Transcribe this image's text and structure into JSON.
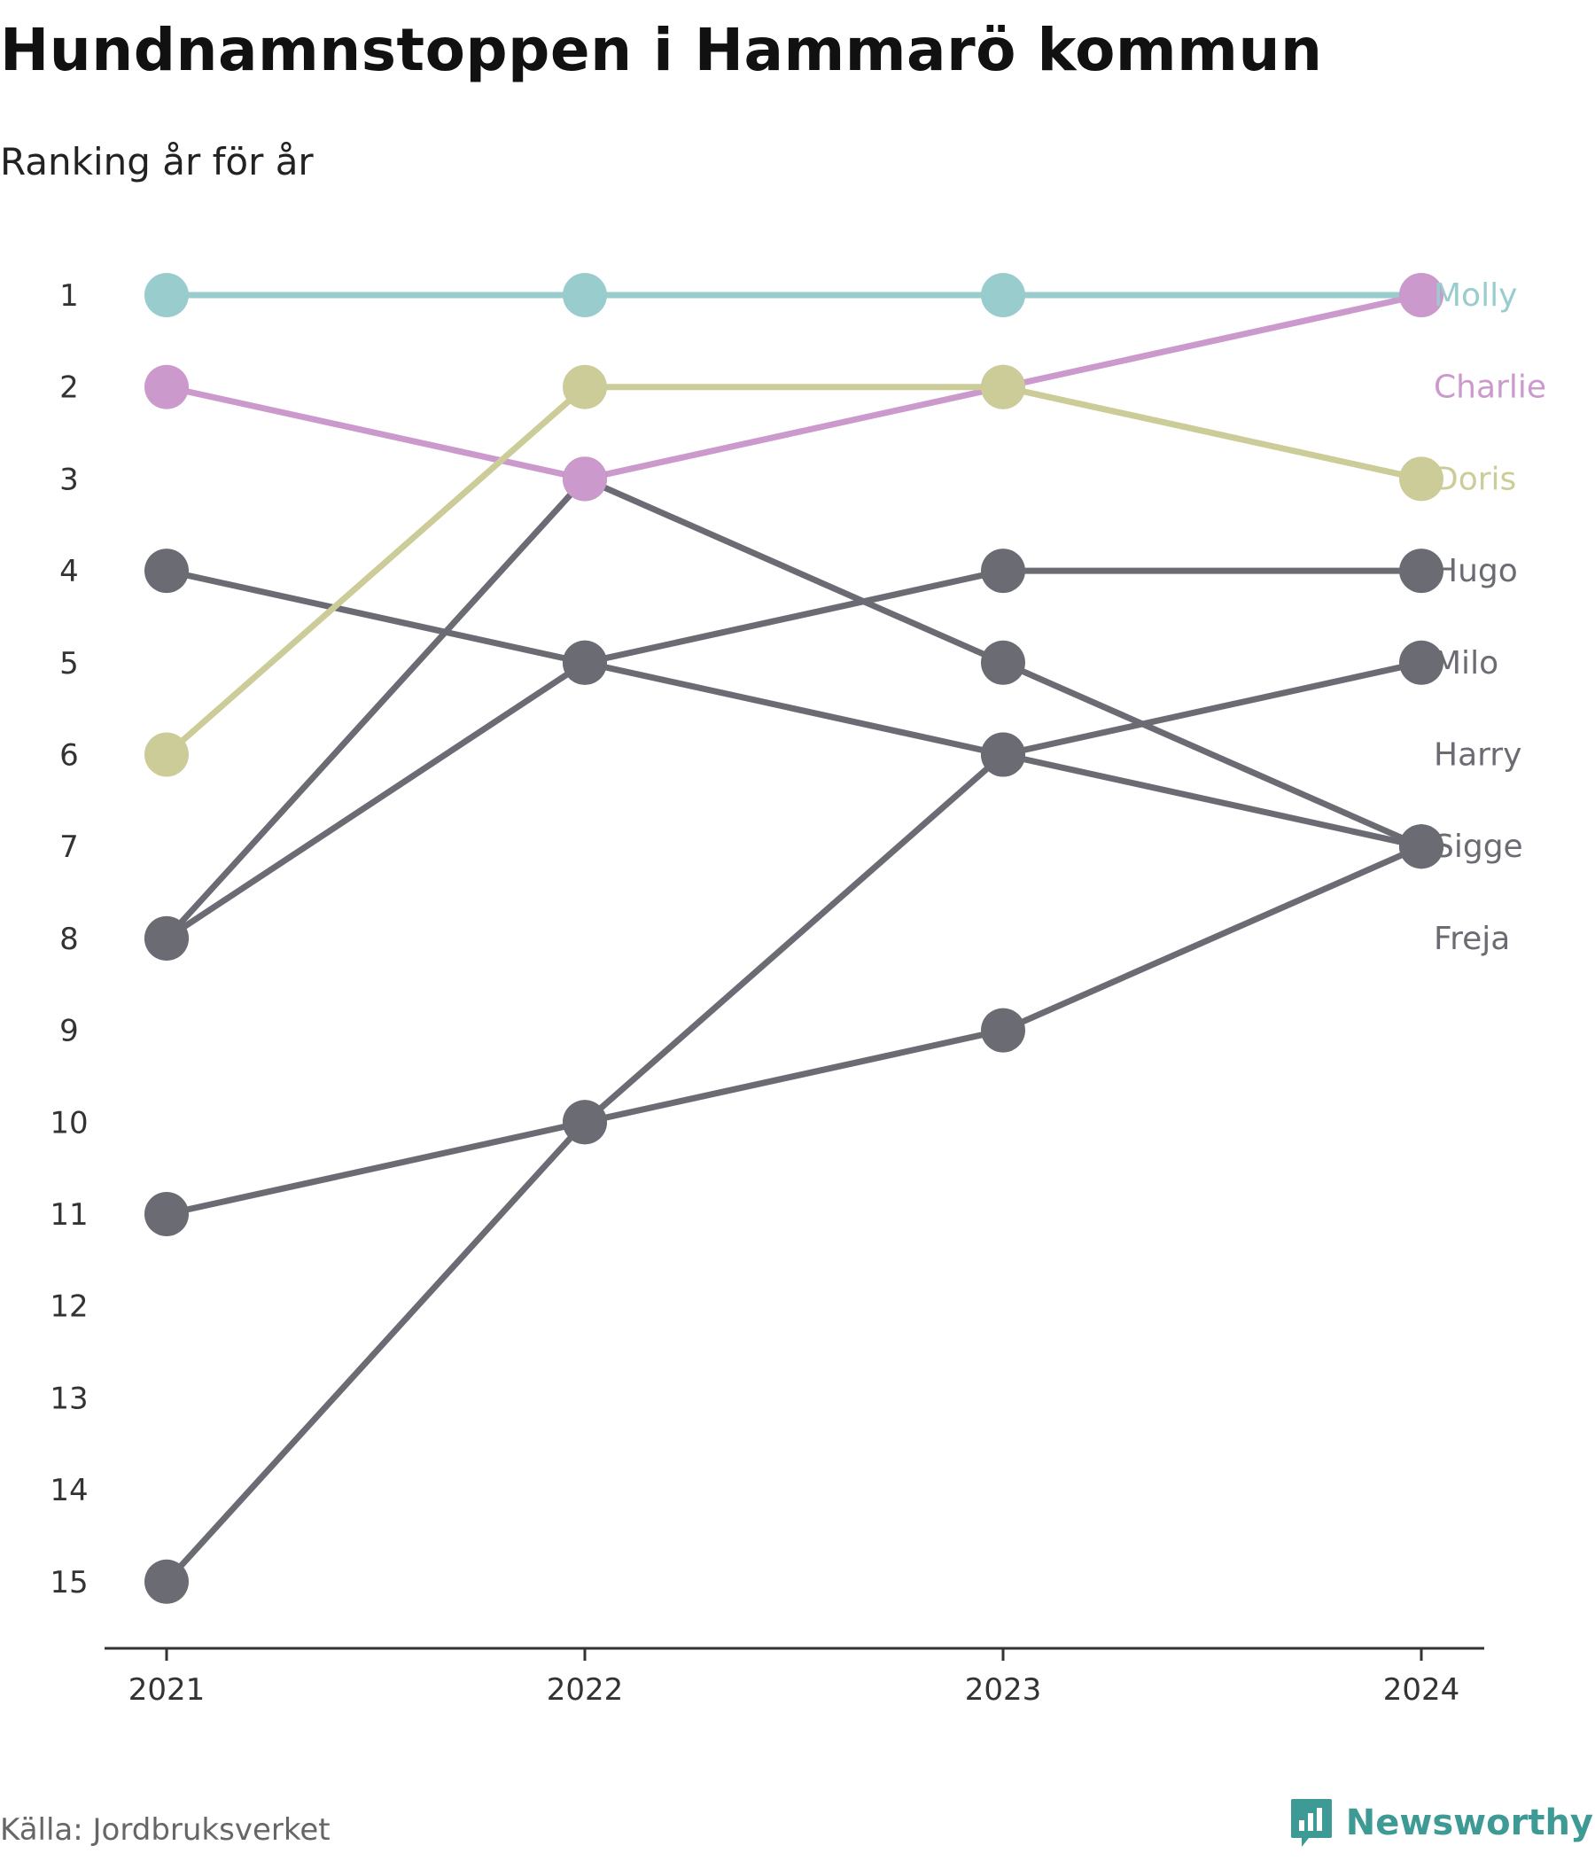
{
  "header": {
    "title": "Hundnamnstoppen i Hammarö kommun",
    "subtitle": "Ranking år för år"
  },
  "footer": {
    "source": "Källa: Jordbruksverket",
    "brand": "Newsworthy"
  },
  "colors": {
    "molly": "#99cccc",
    "charlie": "#cc99cc",
    "doris": "#cccc99",
    "gray": "#6b6b73",
    "axis": "#333333",
    "brand": "#3d9a94"
  },
  "chart_data": {
    "type": "line",
    "x": [
      "2021",
      "2022",
      "2023",
      "2024"
    ],
    "y_ticks": [
      "1",
      "2",
      "3",
      "4",
      "5",
      "6",
      "7",
      "8",
      "9",
      "10",
      "11",
      "12",
      "13",
      "14",
      "15"
    ],
    "ylim": [
      1,
      15
    ],
    "y_inverted": true,
    "grid": false,
    "series": [
      {
        "name": "Molly",
        "values": [
          1,
          1,
          1,
          1
        ],
        "color": "#99cccc"
      },
      {
        "name": "Charlie",
        "values": [
          2,
          3,
          2,
          1
        ],
        "color": "#cc99cc"
      },
      {
        "name": "Doris",
        "values": [
          6,
          2,
          2,
          3
        ],
        "color": "#cccc99"
      },
      {
        "name": "Hugo",
        "values": [
          8,
          5,
          4,
          4
        ],
        "color": "#6b6b73"
      },
      {
        "name": "Milo",
        "values": [
          15,
          10,
          6,
          5
        ],
        "color": "#6b6b73"
      },
      {
        "name": "Harry",
        "values": [
          4,
          5,
          6,
          7
        ],
        "color": "#6b6b73"
      },
      {
        "name": "Sigge",
        "values": [
          8,
          3,
          5,
          7
        ],
        "color": "#6b6b73"
      },
      {
        "name": "Freja",
        "values": [
          11,
          10,
          9,
          7
        ],
        "color": "#6b6b73"
      }
    ],
    "label_ranks": [
      1,
      2,
      3,
      4,
      5,
      6,
      7,
      8
    ]
  }
}
